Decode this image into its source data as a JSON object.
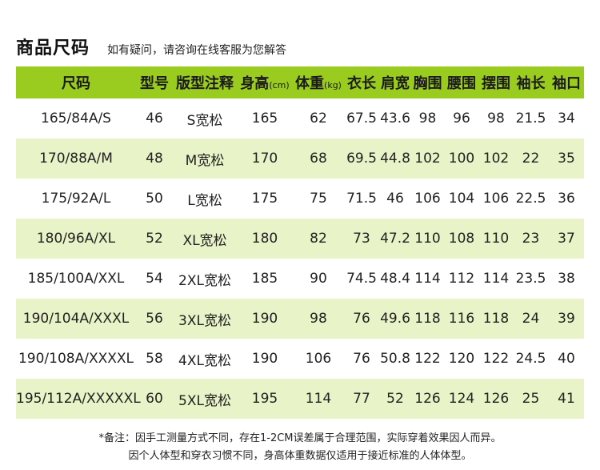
{
  "header": {
    "title": "商品尺码",
    "subtitle": "如有疑问，请咨询在线客服为您解答"
  },
  "table": {
    "columns": [
      {
        "label": "尺码",
        "unit": ""
      },
      {
        "label": "型号",
        "unit": ""
      },
      {
        "label": "版型注释",
        "unit": ""
      },
      {
        "label": "身高",
        "unit": "(cm)"
      },
      {
        "label": "体重",
        "unit": "(kg)"
      },
      {
        "label": "衣长",
        "unit": ""
      },
      {
        "label": "肩宽",
        "unit": ""
      },
      {
        "label": "胸围",
        "unit": ""
      },
      {
        "label": "腰围",
        "unit": ""
      },
      {
        "label": "摆围",
        "unit": ""
      },
      {
        "label": "袖长",
        "unit": ""
      },
      {
        "label": "袖口",
        "unit": ""
      }
    ],
    "rows": [
      [
        "165/84A/S",
        "46",
        "S宽松",
        "165",
        "62",
        "67.5",
        "43.6",
        "98",
        "96",
        "98",
        "21.5",
        "34"
      ],
      [
        "170/88A/M",
        "48",
        "M宽松",
        "170",
        "68",
        "69.5",
        "44.8",
        "102",
        "100",
        "102",
        "22",
        "35"
      ],
      [
        "175/92A/L",
        "50",
        "L宽松",
        "175",
        "75",
        "71.5",
        "46",
        "106",
        "104",
        "106",
        "22.5",
        "36"
      ],
      [
        "180/96A/XL",
        "52",
        "XL宽松",
        "180",
        "82",
        "73",
        "47.2",
        "110",
        "108",
        "110",
        "23",
        "37"
      ],
      [
        "185/100A/XXL",
        "54",
        "2XL宽松",
        "185",
        "90",
        "74.5",
        "48.4",
        "114",
        "112",
        "114",
        "23.5",
        "38"
      ],
      [
        "190/104A/XXXL",
        "56",
        "3XL宽松",
        "190",
        "98",
        "76",
        "49.6",
        "118",
        "116",
        "118",
        "24",
        "39"
      ],
      [
        "190/108A/XXXXL",
        "58",
        "4XL宽松",
        "190",
        "106",
        "76",
        "50.8",
        "122",
        "120",
        "122",
        "24.5",
        "40"
      ],
      [
        "195/112A/XXXXXL",
        "60",
        "5XL宽松",
        "195",
        "114",
        "77",
        "52",
        "126",
        "124",
        "126",
        "25",
        "41"
      ]
    ]
  },
  "notes": {
    "line1": "*备注：因手工测量方式不同，存在1-2CM误差属于合理范围，实际穿着效果因人而异。",
    "line2": "因个人体型和穿衣习惯不同，身高体重数据仅适用于接近标准的人体体型。"
  },
  "colors": {
    "header_green": "#9acb1f",
    "stripe_green": "#e8f3c8"
  }
}
